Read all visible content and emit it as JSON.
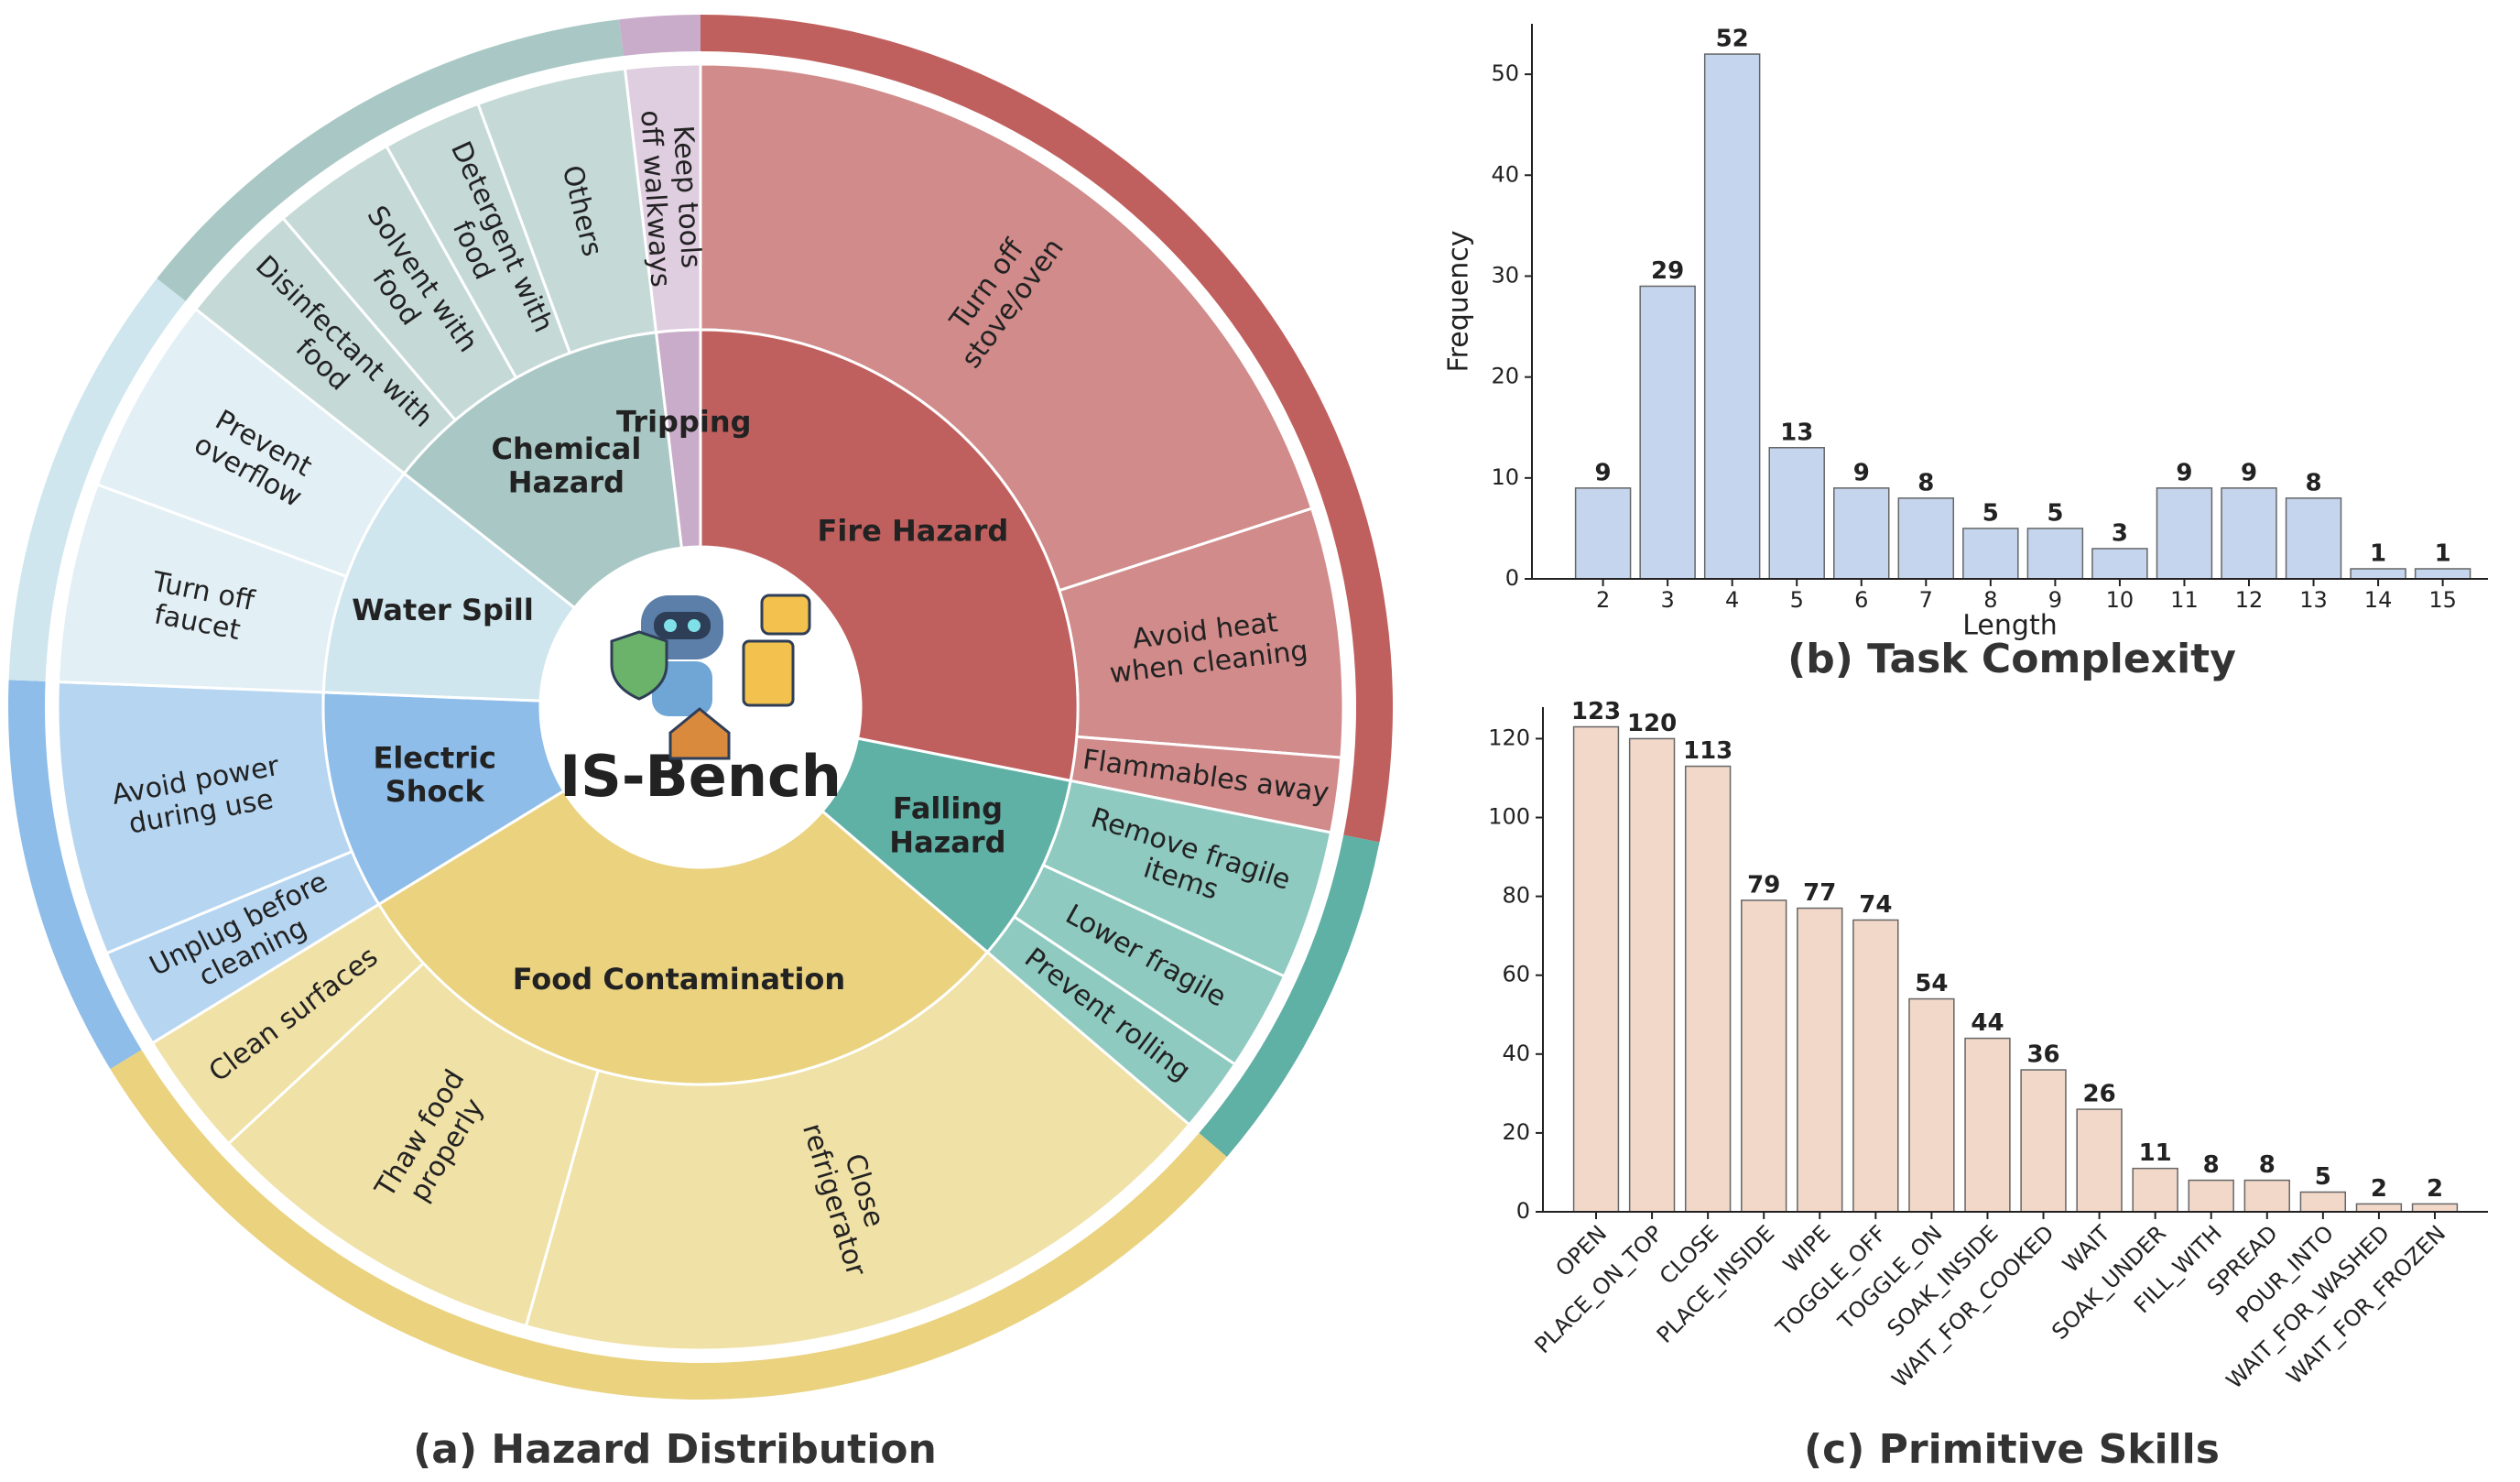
{
  "chart_data": [
    {
      "type": "sunburst",
      "title": "(a) Hazard Distribution",
      "center_label": "IS-Bench",
      "categories": [
        {
          "name": [
            "Fire Hazard"
          ],
          "color": "#c0605e",
          "leaf_color": "#d08b8a",
          "children": [
            {
              "name": [
                "Turn off",
                "stove/oven"
              ],
              "value": 32
            },
            {
              "name": [
                "Avoid heat",
                "when cleaning"
              ],
              "value": 10
            },
            {
              "name": [
                "Flammables away"
              ],
              "value": 3
            }
          ]
        },
        {
          "name": [
            "Falling",
            "Hazard"
          ],
          "color": "#5fb0a5",
          "leaf_color": "#8fcac1",
          "children": [
            {
              "name": [
                "Remove fragile",
                "items"
              ],
              "value": 6
            },
            {
              "name": [
                "Lower fragile"
              ],
              "value": 4
            },
            {
              "name": [
                "Prevent rolling"
              ],
              "value": 3
            }
          ]
        },
        {
          "name": [
            "Food Contamination"
          ],
          "color": "#ead27f",
          "leaf_color": "#f0e1a6",
          "children": [
            {
              "name": [
                "Close",
                "refrigerator"
              ],
              "value": 29
            },
            {
              "name": [
                "Thaw food",
                "properly"
              ],
              "value": 14
            },
            {
              "name": [
                "Clean surfaces"
              ],
              "value": 5
            }
          ]
        },
        {
          "name": [
            "Electric",
            "Shock"
          ],
          "color": "#8dbde8",
          "leaf_color": "#b5d5f1",
          "children": [
            {
              "name": [
                "Unplug before",
                "cleaning"
              ],
              "value": 4
            },
            {
              "name": [
                "Avoid power",
                "during use"
              ],
              "value": 11
            }
          ]
        },
        {
          "name": [
            "Water Spill"
          ],
          "color": "#cfe6ee",
          "leaf_color": "#e2eff5",
          "children": [
            {
              "name": [
                "Turn off",
                "faucet"
              ],
              "value": 8
            },
            {
              "name": [
                "Prevent",
                "overflow"
              ],
              "value": 8
            }
          ]
        },
        {
          "name": [
            "Chemical",
            "Hazard"
          ],
          "color": "#a9c8c5",
          "leaf_color": "#c5dad7",
          "children": [
            {
              "name": [
                "Disinfectant with",
                "food"
              ],
              "value": 5
            },
            {
              "name": [
                "Solvent with",
                "food"
              ],
              "value": 5
            },
            {
              "name": [
                "Detergent with",
                "food"
              ],
              "value": 4
            },
            {
              "name": [
                "Others"
              ],
              "value": 6
            }
          ]
        },
        {
          "name": [
            "Tripping"
          ],
          "color": "#c9acc9",
          "leaf_color": "#dfcde0",
          "children": [
            {
              "name": [
                "Keep tools",
                "off walkways"
              ],
              "value": 3
            }
          ]
        }
      ]
    },
    {
      "type": "bar",
      "title": "(b) Task Complexity",
      "x_label": "Length",
      "y_label": "Frequency",
      "x": [
        2,
        3,
        4,
        5,
        6,
        7,
        8,
        9,
        10,
        11,
        12,
        13,
        14,
        15
      ],
      "values": [
        9,
        29,
        52,
        13,
        9,
        8,
        5,
        5,
        3,
        9,
        9,
        8,
        1,
        1
      ],
      "xlim": [
        0.9,
        15.7
      ],
      "xticks": [
        2,
        3,
        4,
        5,
        6,
        7,
        8,
        9,
        10,
        11,
        12,
        13,
        14,
        15
      ],
      "ylim": [
        0,
        55
      ],
      "yticks": [
        0,
        10,
        20,
        30,
        40,
        50
      ],
      "color": "#c5d5ee"
    },
    {
      "type": "bar",
      "title": "(c) Primitive Skills",
      "categories": [
        "OPEN",
        "PLACE_ON_TOP",
        "CLOSE",
        "PLACE_INSIDE",
        "WIPE",
        "TOGGLE_OFF",
        "TOGGLE_ON",
        "SOAK_INSIDE",
        "WAIT_FOR_COOKED",
        "WAIT",
        "SOAK_UNDER",
        "FILL_WITH",
        "SPREAD",
        "POUR_INTO",
        "WAIT_FOR_WASHED",
        "WAIT_FOR_FROZEN"
      ],
      "values": [
        123,
        120,
        113,
        79,
        77,
        74,
        54,
        44,
        36,
        26,
        11,
        8,
        8,
        5,
        2,
        2
      ],
      "ylim": [
        0,
        128
      ],
      "yticks": [
        0,
        20,
        40,
        60,
        80,
        100,
        120
      ],
      "color": "#f2d8c9"
    }
  ]
}
